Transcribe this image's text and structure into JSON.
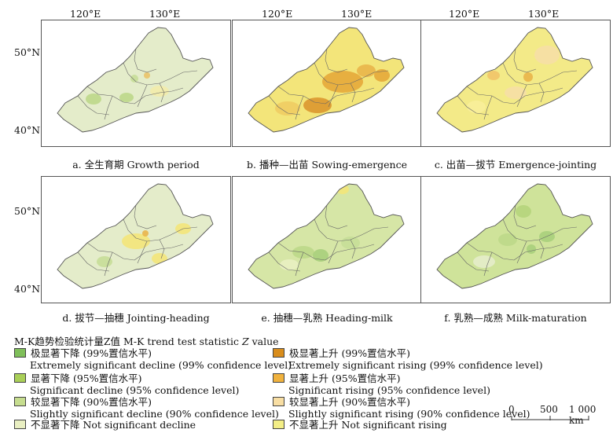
{
  "axes": {
    "lon_labels": [
      "120°E",
      "130°E"
    ],
    "lat_labels": [
      "50°N",
      "40°N"
    ]
  },
  "panels": [
    {
      "id": "a",
      "caption": "a. 全生育期 Growth period",
      "base": "#e4ecca",
      "spots": [
        {
          "c": "#bcd88a"
        },
        {
          "c": "#bcd88a"
        },
        {
          "c": "#c7de98"
        },
        {
          "c": "#e9c36a"
        },
        {
          "c": "#f2ecab"
        }
      ]
    },
    {
      "id": "b",
      "caption": "b. 播种—出苗 Sowing-emergence",
      "base": "#f3e57a",
      "spots": [
        {
          "c": "#e5a93a"
        },
        {
          "c": "#dc972f"
        },
        {
          "c": "#e9b54a"
        },
        {
          "c": "#f0cc63"
        },
        {
          "c": "#e5a93a"
        }
      ]
    },
    {
      "id": "c",
      "caption": "c. 出苗—拔节 Emergence-jointing",
      "base": "#f3ea88",
      "spots": [
        {
          "c": "#f6dfa6"
        },
        {
          "c": "#f1c469"
        },
        {
          "c": "#e9b54a"
        },
        {
          "c": "#f6dfa6"
        },
        {
          "c": "#f8ee9a"
        }
      ]
    },
    {
      "id": "d",
      "caption": "d. 拔节—抽穗 Jointing-heading",
      "base": "#e4ecca",
      "spots": [
        {
          "c": "#f3e57a"
        },
        {
          "c": "#e9b54a"
        },
        {
          "c": "#c7de98"
        },
        {
          "c": "#f3e57a"
        },
        {
          "c": "#f3e57a"
        }
      ]
    },
    {
      "id": "e",
      "caption": "e. 抽穗—乳熟 Heading-milk",
      "base": "#d6e6a6",
      "spots": [
        {
          "c": "#bcd88a"
        },
        {
          "c": "#a9cf7c"
        },
        {
          "c": "#e9efc2"
        },
        {
          "c": "#c7de98"
        },
        {
          "c": "#f3e57a"
        }
      ]
    },
    {
      "id": "f",
      "caption": "f. 乳熟—成熟 Milk-maturation",
      "base": "#cfe39a",
      "spots": [
        {
          "c": "#b5d47c"
        },
        {
          "c": "#a9cf7c"
        },
        {
          "c": "#e4ecca"
        },
        {
          "c": "#bcd88a"
        },
        {
          "c": "#a9cf7c"
        }
      ]
    }
  ],
  "legend": {
    "title_prefix": "M-K趋势检验统计量Z值 M-K trend test statistic ",
    "title_italic": "Z",
    "title_suffix": " value",
    "items": [
      {
        "zh": "极显著下降 (99%置信水平)",
        "en": "Extremely significant decline (99% confidence level)",
        "color": "#7fbf5a"
      },
      {
        "zh": "显著下降 (95%置信水平)",
        "en": "Significant decline (95% confidence level)",
        "color": "#a9cf58"
      },
      {
        "zh": "较显著下降 (90%置信水平)",
        "en": "Slightly significant decline (90% confidence level)",
        "color": "#c6dd8f"
      },
      {
        "zh": "不显著下降 Not significant decline",
        "en": "",
        "color": "#e9efc2"
      },
      {
        "zh": "极显著上升 (99%置信水平)",
        "en": "Extremely significant rising (99% confidence level)",
        "color": "#d98d1c"
      },
      {
        "zh": "显著上升 (95%置信水平)",
        "en": "Significant rising (95% confidence level)",
        "color": "#f0b23e"
      },
      {
        "zh": "较显著上升 (90%置信水平)",
        "en": "Slightly significant rising (90% confidence level)",
        "color": "#f8dea3"
      },
      {
        "zh": "不显著上升 Not significant rising",
        "en": "",
        "color": "#f3ee86"
      }
    ]
  },
  "scale_bar": {
    "labels": [
      "0",
      "500",
      "1 000 km"
    ]
  }
}
